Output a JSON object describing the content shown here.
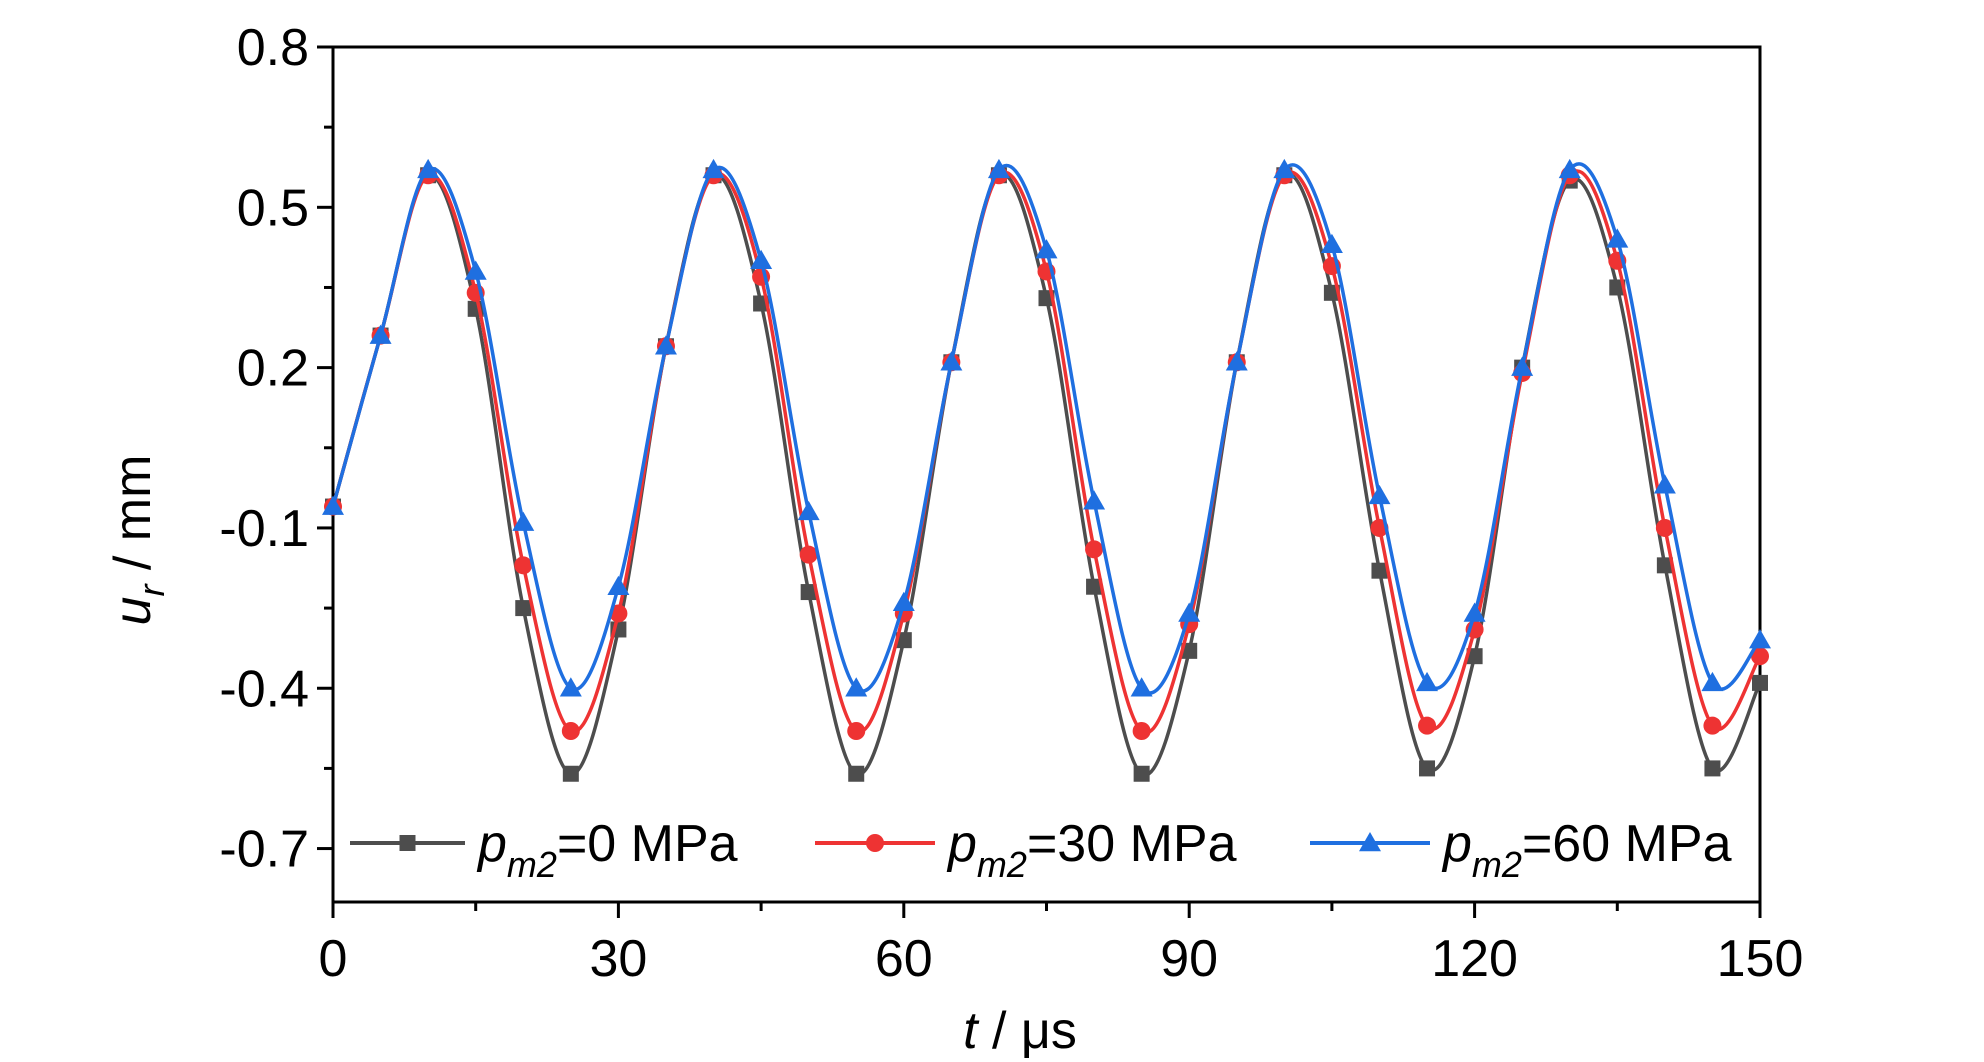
{
  "chart_data": {
    "type": "line",
    "xlabel": {
      "italic": "t",
      "rest": " / μs"
    },
    "ylabel": {
      "italic": "u",
      "sub": "r",
      "rest": " / mm"
    },
    "xlim": [
      0,
      150
    ],
    "ylim": [
      -0.8,
      0.8
    ],
    "xticks": [
      "0",
      "30",
      "60",
      "90",
      "120",
      "150"
    ],
    "yticks": [
      "0.8",
      "0.5",
      "0.2",
      "-0.1",
      "-0.4",
      "-0.7"
    ],
    "legend_position": "bottom",
    "grid": false,
    "x": [
      0,
      5,
      10,
      15,
      20,
      25,
      30,
      35,
      40,
      45,
      50,
      55,
      60,
      65,
      70,
      75,
      80,
      85,
      90,
      95,
      100,
      105,
      110,
      115,
      120,
      125,
      130,
      135,
      140,
      145,
      150
    ],
    "series": [
      {
        "legend_p": "p",
        "legend_sub": "m2",
        "legend_rest": "=0 MPa",
        "color": "#4d4d4d",
        "marker": "square",
        "values": [
          -0.06,
          0.26,
          0.56,
          0.31,
          -0.25,
          -0.56,
          -0.29,
          0.24,
          0.56,
          0.32,
          -0.22,
          -0.56,
          -0.31,
          0.21,
          0.56,
          0.33,
          -0.21,
          -0.56,
          -0.33,
          0.21,
          0.56,
          0.34,
          -0.18,
          -0.55,
          -0.34,
          0.2,
          0.55,
          0.35,
          -0.17,
          -0.55,
          -0.39
        ]
      },
      {
        "legend_p": "p",
        "legend_sub": "m2",
        "legend_rest": "=30 MPa",
        "color": "#ee3333",
        "marker": "circle",
        "values": [
          -0.06,
          0.26,
          0.56,
          0.34,
          -0.17,
          -0.48,
          -0.26,
          0.24,
          0.56,
          0.37,
          -0.15,
          -0.48,
          -0.26,
          0.21,
          0.56,
          0.38,
          -0.14,
          -0.48,
          -0.28,
          0.21,
          0.56,
          0.39,
          -0.1,
          -0.47,
          -0.29,
          0.19,
          0.56,
          0.4,
          -0.1,
          -0.47,
          -0.34
        ]
      },
      {
        "legend_p": "p",
        "legend_sub": "m2",
        "legend_rest": "=60 MPa",
        "color": "#1f6fe0",
        "marker": "triangle",
        "values": [
          -0.06,
          0.26,
          0.57,
          0.38,
          -0.09,
          -0.4,
          -0.21,
          0.24,
          0.57,
          0.4,
          -0.07,
          -0.4,
          -0.24,
          0.21,
          0.57,
          0.42,
          -0.05,
          -0.4,
          -0.26,
          0.21,
          0.57,
          0.43,
          -0.04,
          -0.39,
          -0.26,
          0.2,
          0.57,
          0.44,
          -0.02,
          -0.39,
          -0.31
        ]
      }
    ]
  }
}
